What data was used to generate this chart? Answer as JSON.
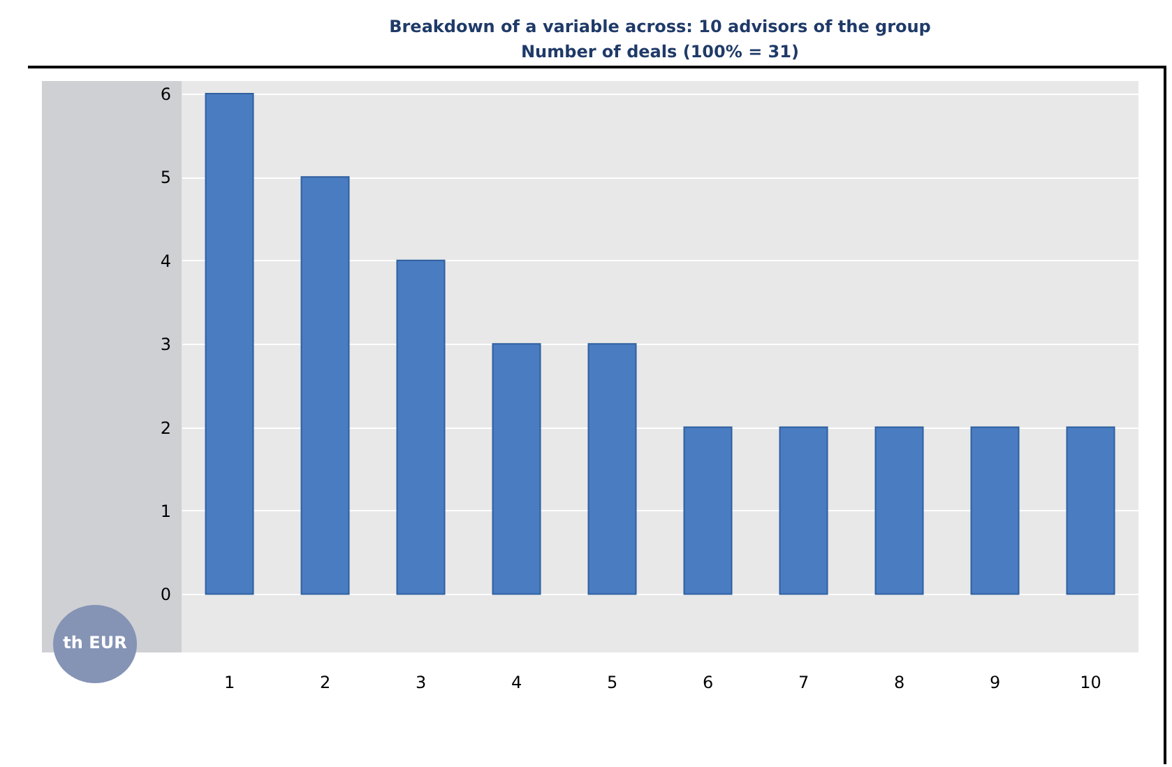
{
  "chart_data": {
    "type": "bar",
    "title": "Breakdown of a variable across: 10 advisors of the group",
    "subtitle": "Number of deals (100% = 31)",
    "ylabel": "th EUR",
    "categories": [
      "1",
      "2",
      "3",
      "4",
      "5",
      "6",
      "7",
      "8",
      "9",
      "10"
    ],
    "values": [
      6,
      5,
      4,
      3,
      3,
      2,
      2,
      2,
      2,
      2
    ],
    "color": "#4a7cc2",
    "ylim": [
      -0.7,
      6.15
    ],
    "yticks": [
      0,
      1,
      2,
      3,
      4,
      5,
      6
    ],
    "grid": "y"
  }
}
